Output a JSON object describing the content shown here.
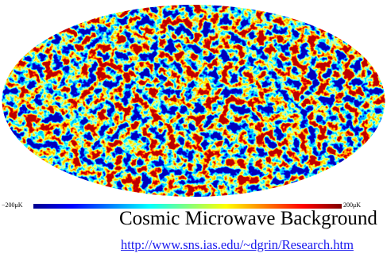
{
  "colorbar": {
    "min_label": "−200μK",
    "max_label": "200μK"
  },
  "caption": {
    "title": "Cosmic Microwave Background",
    "link": "http://www.sns.ias.edu/~dgrin/Research.htm"
  }
}
